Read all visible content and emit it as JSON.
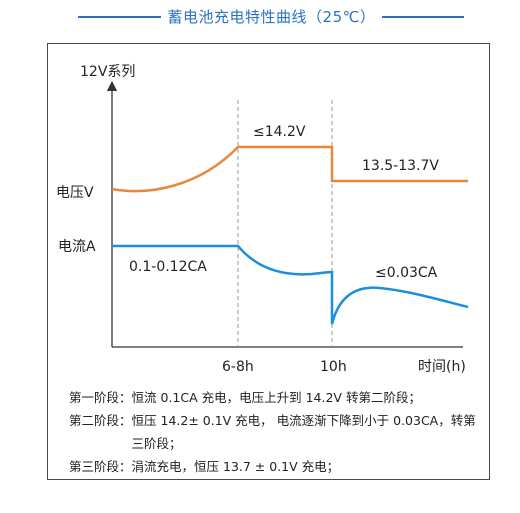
{
  "title": "蓄电池充电特性曲线（25℃）",
  "colors": {
    "title": "#2b72c6",
    "voltage": "#e8883b",
    "current": "#1a8fe0",
    "axis": "#333333",
    "guide": "#9a9a9a"
  },
  "chart_data": {
    "type": "line",
    "ylabel": "12V系列",
    "xlabel": "时间(h)",
    "x_ticks": [
      "6-8h",
      "10h"
    ],
    "series": [
      {
        "name": "电压V",
        "points": [
          [
            0,
            0.05
          ],
          [
            0.55,
            0.2
          ],
          [
            1.0,
            1.0
          ],
          [
            1.8,
            1.0
          ],
          [
            1.8,
            0.0
          ],
          [
            2.65,
            0.0
          ]
        ],
        "annotations": [
          "≤14.2V",
          "13.5-13.7V"
        ]
      },
      {
        "name": "电流A",
        "points": [
          [
            0,
            1.0
          ],
          [
            1.0,
            1.0
          ],
          [
            1.35,
            0.55
          ],
          [
            1.8,
            0.55
          ],
          [
            1.8,
            -0.3
          ],
          [
            2.65,
            0.2
          ]
        ],
        "annotations": [
          "0.1-0.12CA",
          "≤0.03CA"
        ]
      }
    ]
  },
  "notes": [
    {
      "head": "第一阶段：",
      "body": "恒流 0.1CA 充电，电压上升到 14.2V 转第二阶段；"
    },
    {
      "head": "第二阶段：",
      "body": "恒压 14.2± 0.1V 充电， 电流逐渐下降到小于 0.03CA，转第三阶段；"
    },
    {
      "head": "第三阶段：",
      "body": "涓流充电，恒压 13.7 ± 0.1V 充电；"
    }
  ]
}
